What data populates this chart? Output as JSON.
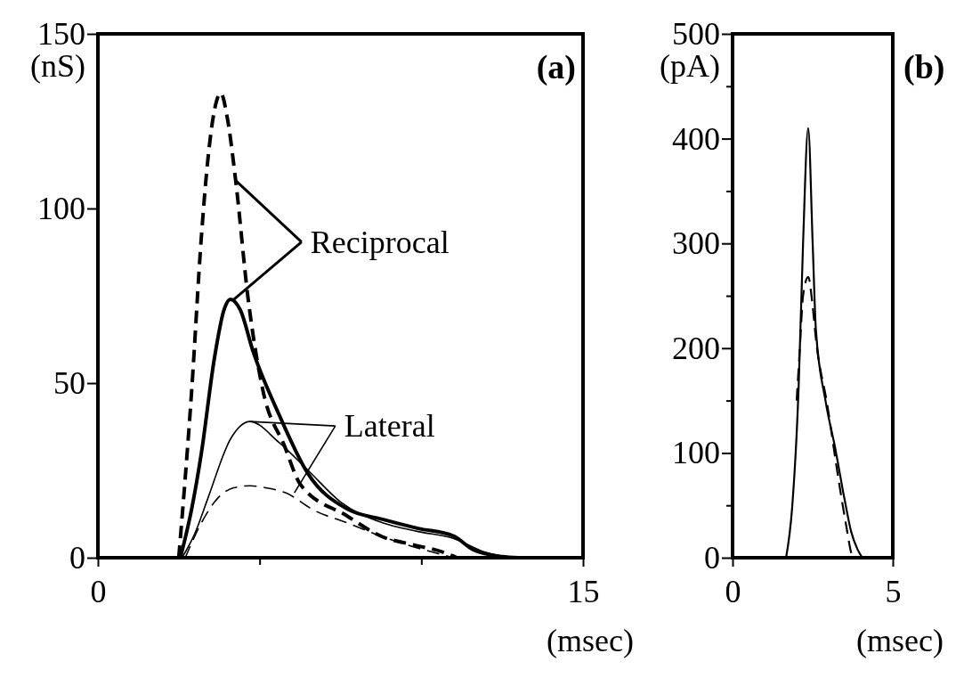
{
  "chart_data": [
    {
      "type": "line",
      "title": "(a)",
      "xlabel": "(msec)",
      "ylabel": "(nS)",
      "xlim": [
        0,
        15
      ],
      "ylim": [
        0,
        150
      ],
      "xticks": [
        0,
        {
          "value": 5,
          "label": null
        },
        {
          "value": 10,
          "label": null
        },
        15
      ],
      "yticks": [
        0,
        50,
        100,
        150
      ],
      "grid": false,
      "marker": "none",
      "annotations": [
        {
          "text": "Reciprocal",
          "x": 4.26,
          "y": 108
        },
        {
          "text": "Lateral",
          "x": 4.7,
          "y": 39
        }
      ],
      "series": [
        {
          "color": "#000000",
          "line_style": "dashed",
          "x": [
            2.5,
            2.9,
            3.2,
            3.4,
            3.6,
            3.8,
            4.0,
            4.26,
            4.64,
            5.1,
            5.77,
            6.26,
            7.7,
            8.8,
            9.6,
            10.7,
            11.1
          ],
          "values": [
            0,
            48,
            92,
            114,
            128,
            133,
            126,
            108,
            74.5,
            48,
            32,
            21,
            12,
            6,
            4,
            1.5,
            0
          ]
        },
        {
          "color": "#000000",
          "line_style": "solid",
          "x": [
            2.55,
            2.9,
            3.2,
            3.6,
            3.9,
            4.1,
            4.4,
            4.8,
            5.6,
            6.5,
            7.7,
            8.8,
            9.9,
            11.0,
            11.6,
            12.5,
            13.0
          ],
          "values": [
            0,
            14,
            30,
            57,
            71,
            74,
            71,
            59,
            41,
            24,
            14,
            11,
            8.4,
            6.2,
            2.3,
            0.3,
            0
          ]
        },
        {
          "color": "#000000",
          "line_style": "solid",
          "x": [
            2.6,
            3.0,
            3.4,
            4.1,
            4.7,
            5.6,
            6.5,
            7.5,
            8.8,
            9.9,
            11.0,
            12.0,
            12.8
          ],
          "values": [
            0,
            7,
            17,
            34,
            39,
            33,
            25,
            16,
            10,
            7.5,
            5.5,
            1.5,
            0
          ]
        },
        {
          "color": "#000000",
          "line_style": "dashed",
          "x": [
            2.7,
            3.2,
            3.7,
            4.2,
            4.7,
            5.2,
            5.8,
            6.7,
            7.7,
            8.8,
            9.8,
            10.6,
            11.0
          ],
          "values": [
            0,
            10,
            17,
            20,
            20.6,
            20,
            18.6,
            13.5,
            10,
            6,
            3,
            1,
            0
          ]
        }
      ]
    },
    {
      "type": "line",
      "title": "(b)",
      "xlabel": "(msec)",
      "ylabel": "(pA)",
      "xlim": [
        0,
        5
      ],
      "ylim": [
        0,
        500
      ],
      "xticks": [
        0,
        5
      ],
      "yticks": [
        0,
        {
          "value": 50,
          "label": null
        },
        100,
        {
          "value": 150,
          "label": null
        },
        200,
        {
          "value": 250,
          "label": null
        },
        300,
        {
          "value": 350,
          "label": null
        },
        400,
        {
          "value": 450,
          "label": null
        },
        500
      ],
      "grid": false,
      "marker": "none",
      "series": [
        {
          "color": "#000000",
          "line_style": "solid",
          "x": [
            1.67,
            1.86,
            2.06,
            2.2,
            2.36,
            2.5,
            2.6,
            2.9,
            3.2,
            3.5,
            3.7,
            3.9,
            4.05
          ],
          "values": [
            0,
            48,
            161,
            300,
            410,
            300,
            218,
            150,
            105,
            55,
            25,
            8,
            0
          ]
        },
        {
          "color": "#000000",
          "line_style": "dashed",
          "x": [
            2.0,
            2.1,
            2.2,
            2.36,
            2.5,
            2.6,
            2.95,
            3.3,
            3.55,
            3.7,
            3.75
          ],
          "values": [
            150,
            200,
            250,
            268,
            240,
            209,
            147,
            76,
            30,
            5,
            0
          ]
        }
      ]
    }
  ]
}
